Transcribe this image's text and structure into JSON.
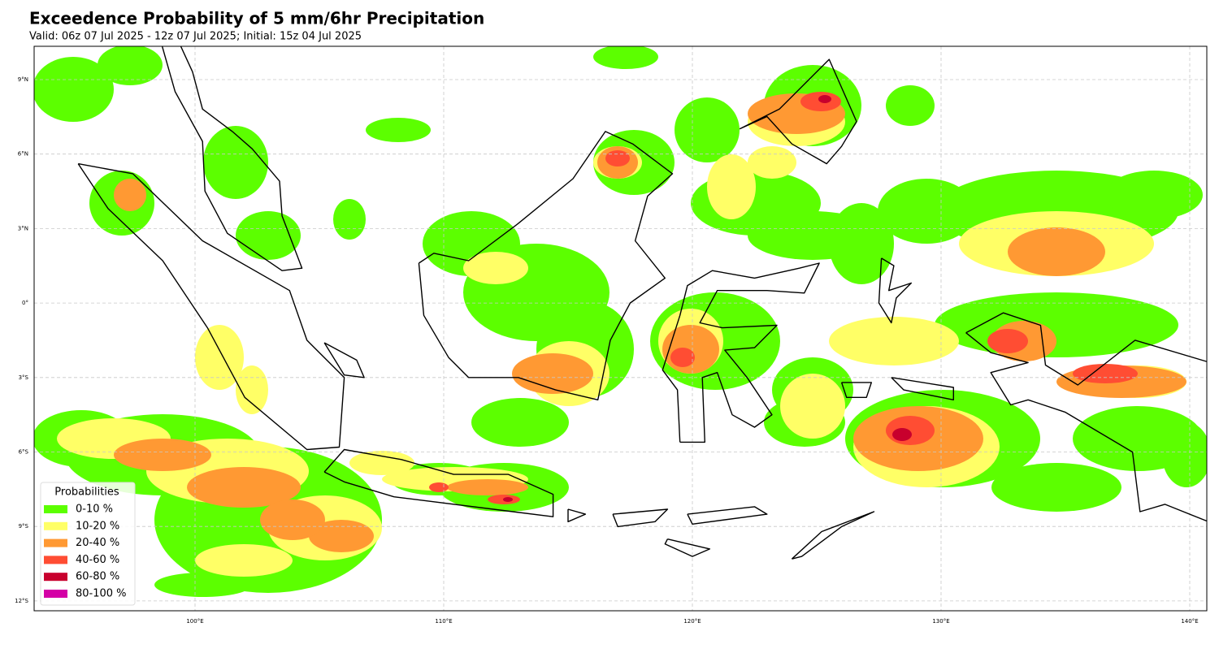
{
  "header": {
    "title": "Exceedence Probability of 5 mm/6hr Precipitation",
    "subtitle": "Valid: 06z 07 Jul 2025 - 12z 07 Jul 2025; Initial: 15z 04 Jul 2025"
  },
  "map": {
    "lat_labels": [
      "9°N",
      "6°N",
      "3°N",
      "0°",
      "3°S",
      "6°S",
      "9°S",
      "12°S"
    ],
    "lon_labels": [
      "100°E",
      "110°E",
      "120°E",
      "130°E",
      "140°E"
    ]
  },
  "legend": {
    "title": "Probabilities",
    "items": [
      {
        "label": "0-10 %",
        "color": "#5cff00"
      },
      {
        "label": "10-20 %",
        "color": "#ffff66"
      },
      {
        "label": "20-40 %",
        "color": "#ff9933"
      },
      {
        "label": "40-60 %",
        "color": "#ff4d33"
      },
      {
        "label": "60-80 %",
        "color": "#c8002d"
      },
      {
        "label": "80-100 %",
        "color": "#d400a6"
      }
    ]
  }
}
